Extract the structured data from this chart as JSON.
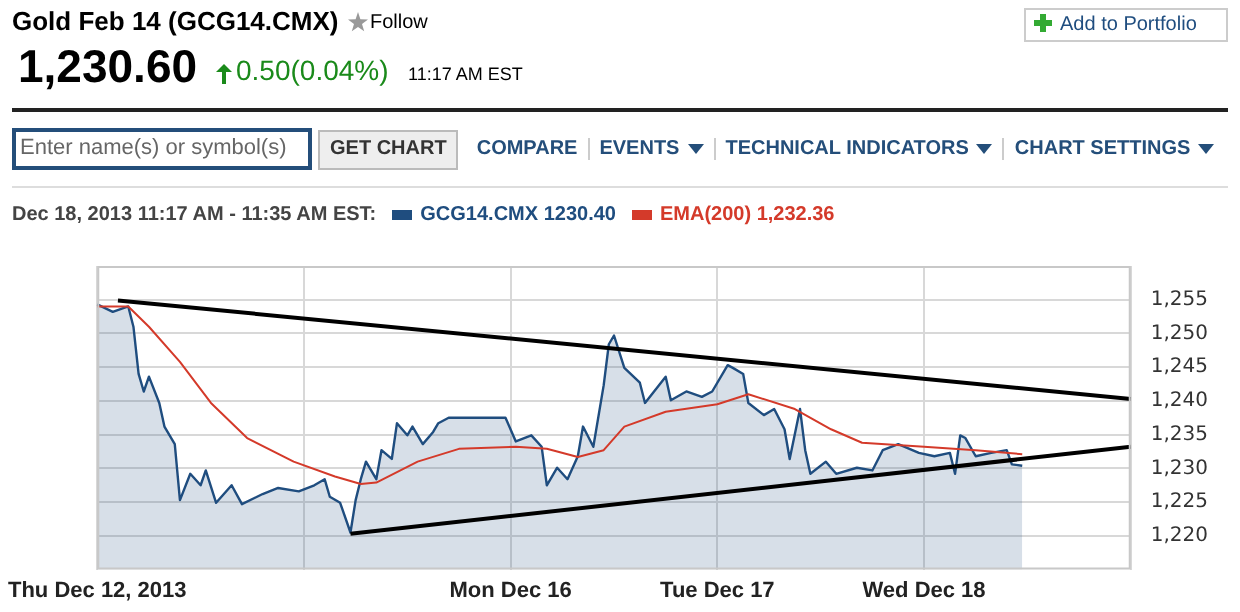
{
  "chart_data": {
    "type": "area",
    "title": "Gold Feb 14 (GCG14.CMX)",
    "legend_title": "Dec 18, 2013 11:17 AM - 11:35 AM EST:",
    "annotations": [
      "1,230.60",
      "0.50(0.04%)",
      "11:17 AM EST",
      "Follow",
      "Add to Portfolio",
      "Enter name(s) or symbol(s)",
      "GET CHART",
      "COMPARE",
      "EVENTS",
      "TECHNICAL INDICATORS",
      "CHART SETTINGS"
    ],
    "categories": [
      "Thu Dec 12, 2013",
      null,
      null,
      null,
      null,
      null,
      null,
      null,
      null,
      null,
      null,
      null,
      null,
      null,
      null,
      null,
      null,
      null,
      null,
      null,
      null,
      null,
      null,
      null,
      null,
      null,
      null,
      null,
      null,
      null,
      null,
      null,
      null,
      null,
      null,
      null,
      null,
      null,
      null,
      null,
      null,
      null,
      null,
      null,
      null,
      null,
      null,
      null,
      null,
      null,
      null,
      null,
      null,
      null,
      null,
      null,
      null,
      null,
      null,
      null,
      null,
      null,
      null,
      null,
      null,
      null,
      null,
      null,
      null,
      null,
      null,
      null,
      null,
      null,
      null,
      null,
      null,
      null,
      null,
      null,
      "Mon Dec 16",
      null,
      null,
      null,
      null,
      null,
      null,
      null,
      null,
      null,
      null,
      null,
      null,
      null,
      null,
      null,
      null,
      null,
      null,
      null,
      null,
      null,
      null,
      null,
      null,
      null,
      null,
      null,
      null,
      null,
      null,
      null,
      null,
      null,
      null,
      null,
      null,
      null,
      null,
      null,
      "Tue Dec 17",
      null,
      null,
      null,
      null,
      null,
      null,
      null,
      null,
      null,
      null,
      null,
      null,
      null,
      null,
      null,
      null,
      null,
      null,
      null,
      null,
      null,
      null,
      null,
      null,
      null,
      null,
      null,
      null,
      null,
      null,
      null,
      null,
      null,
      null,
      null,
      null,
      null,
      null,
      null,
      "Wed Dec 18",
      null,
      null,
      null,
      null,
      null,
      null,
      null,
      null,
      null,
      null,
      null,
      null,
      null,
      null,
      null,
      null,
      null,
      null,
      null,
      null,
      null,
      null,
      null,
      null,
      null,
      null,
      null,
      null,
      null,
      null,
      null,
      null,
      null,
      null,
      null,
      null,
      null,
      null,
      null,
      null
    ],
    "ylim": [
      1215,
      1260
    ],
    "yticks": [
      {
        "value": 1220,
        "label": "1,220"
      },
      {
        "value": 1225,
        "label": "1,225"
      },
      {
        "value": 1230,
        "label": "1,230"
      },
      {
        "value": 1235,
        "label": "1,235"
      },
      {
        "value": 1240,
        "label": "1,240"
      },
      {
        "value": 1245,
        "label": "1,245"
      },
      {
        "value": 1250,
        "label": "1,250"
      },
      {
        "value": 1255,
        "label": "1,255"
      }
    ],
    "grid": true,
    "legend": "top",
    "marker": "none",
    "series": [
      {
        "name": "GCG14.CMX 1230.40",
        "color": "#1f4d7f",
        "values": [
          1254.3,
          null,
          null,
          1253.2,
          null,
          null,
          1254.0,
          1251.0,
          1244.0,
          1241.4,
          1243.6,
          null,
          1239.7,
          1236.2,
          1234.9,
          1233.6,
          1225.3,
          null,
          1229.2,
          null,
          1227.5,
          1229.7,
          null,
          1224.9,
          null,
          null,
          1227.5,
          null,
          1224.7,
          null,
          null,
          null,
          1226.2,
          null,
          null,
          1227.1,
          null,
          null,
          null,
          1226.6,
          null,
          null,
          1227.5,
          null,
          1228.4,
          1225.8,
          null,
          1224.9,
          null,
          1220.5,
          1225.3,
          1228.4,
          1231.0,
          null,
          1228.4,
          1232.7,
          null,
          1231.4,
          1236.7,
          null,
          1234.9,
          1236.2,
          null,
          1233.6,
          null,
          1235.4,
          1236.7,
          null,
          1237.5,
          null,
          null,
          null,
          null,
          null,
          null,
          null,
          null,
          null,
          null,
          1237.5,
          null,
          1234.0,
          null,
          null,
          1234.9,
          null,
          1233.2,
          1227.5,
          null,
          1230.1,
          null,
          1228.4,
          null,
          1231.8,
          1236.2,
          null,
          1233.2,
          null,
          1242.3,
          1248.4,
          1249.7,
          null,
          1244.9,
          null,
          null,
          1242.7,
          1239.7,
          null,
          null,
          null,
          1243.6,
          1240.1,
          null,
          null,
          1241.4,
          null,
          null,
          1240.6,
          null,
          1241.4,
          null,
          null,
          1245.3,
          1244.9,
          null,
          1244.0,
          1239.7,
          null,
          null,
          1237.9,
          null,
          1238.8,
          null,
          1235.8,
          1231.4,
          null,
          1238.8,
          1232.7,
          1229.2,
          null,
          null,
          1231.0,
          null,
          1229.2,
          null,
          null,
          null,
          1230.1,
          null,
          null,
          1229.7,
          null,
          1232.7,
          null,
          null,
          1233.6,
          null,
          null,
          null,
          1232.3,
          null,
          null,
          1231.8,
          null,
          null,
          1232.3,
          1229.2,
          1234.9,
          1234.5,
          null,
          1231.8,
          null,
          null,
          1232.3,
          null,
          null,
          1232.7,
          1230.6,
          null,
          1230.4,
          null,
          null,
          null,
          null,
          null,
          null,
          null,
          null,
          null,
          null,
          null,
          null,
          null,
          null,
          null,
          null,
          null,
          null,
          null,
          null,
          null
        ]
      },
      {
        "name": "EMA(200) 1,232.36",
        "type": "line",
        "color": "#d43a2a",
        "values": [
          1254.0,
          null,
          null,
          null,
          null,
          null,
          1254.0,
          null,
          null,
          null,
          1251.0,
          null,
          null,
          null,
          null,
          null,
          1245.8,
          null,
          null,
          null,
          null,
          null,
          1239.7,
          null,
          null,
          null,
          null,
          null,
          null,
          1234.5,
          null,
          null,
          null,
          null,
          null,
          null,
          null,
          null,
          1231.0,
          null,
          null,
          null,
          null,
          null,
          null,
          null,
          1228.8,
          null,
          null,
          null,
          null,
          1227.7,
          null,
          null,
          1227.9,
          null,
          null,
          null,
          null,
          null,
          null,
          null,
          1231.0,
          null,
          null,
          null,
          null,
          null,
          null,
          null,
          1232.9,
          null,
          null,
          null,
          null,
          null,
          null,
          null,
          null,
          null,
          null,
          1233.2,
          null,
          null,
          null,
          null,
          null,
          1232.9,
          null,
          null,
          null,
          null,
          null,
          1231.7,
          null,
          null,
          null,
          null,
          1232.7,
          null,
          null,
          null,
          1236.2,
          null,
          null,
          null,
          null,
          null,
          null,
          null,
          1238.4,
          null,
          null,
          null,
          null,
          null,
          null,
          null,
          null,
          null,
          1239.5,
          null,
          null,
          null,
          null,
          null,
          1241.0,
          null,
          null,
          null,
          null,
          null,
          null,
          null,
          null,
          1238.8,
          null,
          null,
          null,
          null,
          null,
          null,
          1235.8,
          null,
          null,
          null,
          null,
          null,
          1233.8,
          null,
          null,
          null,
          null,
          null,
          null,
          null,
          null,
          null,
          null,
          null,
          1233.2,
          null,
          null,
          null,
          null,
          null,
          null,
          null,
          null,
          null,
          1232.7,
          null,
          null,
          null,
          null,
          null,
          null,
          null,
          null,
          1232.1,
          null,
          null,
          null,
          null,
          null,
          null,
          null,
          null,
          null,
          null,
          null,
          null,
          null,
          null,
          null,
          null,
          null,
          null,
          null,
          null,
          null
        ]
      },
      {
        "type": "line",
        "color": "#000000",
        "values": [
          null,
          null,
          null,
          null,
          1254.9,
          null,
          null,
          null,
          null,
          null,
          null,
          null,
          null,
          null,
          null,
          null,
          null,
          null,
          null,
          null,
          null,
          null,
          null,
          null,
          null,
          null,
          null,
          null,
          null,
          null,
          null,
          null,
          null,
          null,
          null,
          null,
          null,
          null,
          null,
          null,
          null,
          null,
          null,
          null,
          null,
          null,
          null,
          null,
          null,
          null,
          null,
          null,
          null,
          null,
          null,
          null,
          null,
          null,
          null,
          null,
          null,
          null,
          null,
          null,
          null,
          null,
          null,
          null,
          null,
          null,
          null,
          null,
          null,
          null,
          null,
          null,
          null,
          null,
          null,
          null,
          null,
          null,
          null,
          null,
          null,
          null,
          null,
          null,
          null,
          null,
          null,
          null,
          null,
          null,
          null,
          null,
          null,
          null,
          null,
          null,
          null,
          null,
          null,
          null,
          null,
          null,
          null,
          null,
          null,
          null,
          null,
          null,
          null,
          null,
          null,
          null,
          null,
          null,
          null,
          null,
          null,
          null,
          null,
          null,
          null,
          null,
          null,
          null,
          null,
          null,
          null,
          null,
          null,
          null,
          null,
          null,
          null,
          null,
          null,
          null,
          null,
          null,
          null,
          null,
          null,
          null,
          null,
          null,
          null,
          null,
          null,
          null,
          null,
          null,
          null,
          null,
          null,
          null,
          null,
          null,
          null,
          null,
          null,
          null,
          null,
          null,
          null,
          null,
          null,
          null,
          null,
          null,
          null,
          null,
          null,
          null,
          null,
          null,
          null,
          null,
          null,
          null,
          null,
          null,
          null,
          null,
          null,
          null,
          null,
          null,
          null,
          null,
          null,
          null,
          null,
          null,
          null,
          null,
          null,
          null,
          1240.3
        ]
      },
      {
        "type": "line",
        "color": "#000000",
        "values": [
          null,
          null,
          null,
          null,
          null,
          null,
          null,
          null,
          null,
          null,
          null,
          null,
          null,
          null,
          null,
          null,
          null,
          null,
          null,
          null,
          null,
          null,
          null,
          null,
          null,
          null,
          null,
          null,
          null,
          null,
          null,
          null,
          null,
          null,
          null,
          null,
          null,
          null,
          null,
          null,
          null,
          null,
          null,
          null,
          null,
          null,
          null,
          null,
          null,
          1220.3,
          null,
          null,
          null,
          null,
          null,
          null,
          null,
          null,
          null,
          null,
          null,
          null,
          null,
          null,
          null,
          null,
          null,
          null,
          null,
          null,
          null,
          null,
          null,
          null,
          null,
          null,
          null,
          null,
          null,
          null,
          null,
          null,
          null,
          null,
          null,
          null,
          null,
          null,
          null,
          null,
          null,
          null,
          null,
          null,
          null,
          null,
          null,
          null,
          null,
          null,
          null,
          null,
          null,
          null,
          null,
          null,
          null,
          null,
          null,
          null,
          null,
          null,
          null,
          null,
          null,
          null,
          null,
          null,
          null,
          null,
          null,
          null,
          null,
          null,
          null,
          null,
          null,
          null,
          null,
          null,
          null,
          null,
          null,
          null,
          null,
          null,
          null,
          null,
          null,
          null,
          null,
          null,
          null,
          null,
          null,
          null,
          null,
          null,
          null,
          null,
          null,
          null,
          null,
          null,
          null,
          null,
          null,
          null,
          null,
          null,
          null,
          null,
          null,
          null,
          null,
          null,
          null,
          null,
          null,
          null,
          null,
          null,
          null,
          null,
          null,
          null,
          null,
          null,
          null,
          null,
          null,
          null,
          null,
          null,
          null,
          null,
          null,
          null,
          null,
          null,
          null,
          null,
          null,
          null,
          null,
          null,
          null,
          null,
          null,
          null,
          1233.2
        ]
      }
    ]
  }
}
